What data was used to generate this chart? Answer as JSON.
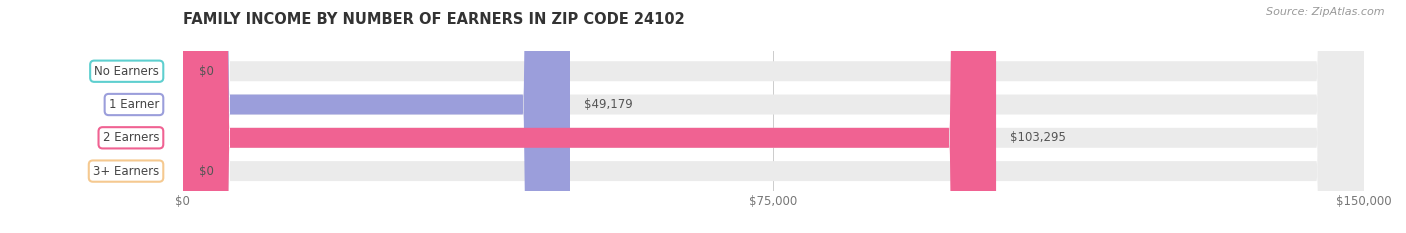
{
  "title": "FAMILY INCOME BY NUMBER OF EARNERS IN ZIP CODE 24102",
  "source": "Source: ZipAtlas.com",
  "categories": [
    "No Earners",
    "1 Earner",
    "2 Earners",
    "3+ Earners"
  ],
  "values": [
    0,
    49179,
    103295,
    0
  ],
  "bar_colors": [
    "#5ecfcf",
    "#9b9edb",
    "#f06292",
    "#f5c990"
  ],
  "track_color": "#ebebeb",
  "xlim": [
    0,
    150000
  ],
  "xticks": [
    0,
    75000,
    150000
  ],
  "xtick_labels": [
    "$0",
    "$75,000",
    "$150,000"
  ],
  "value_labels": [
    "$0",
    "$49,179",
    "$103,295",
    "$0"
  ],
  "bar_height": 0.6,
  "title_fontsize": 10.5,
  "tick_fontsize": 8.5,
  "label_fontsize": 8.5,
  "cat_fontsize": 8.5,
  "source_fontsize": 8,
  "background_color": "#ffffff"
}
